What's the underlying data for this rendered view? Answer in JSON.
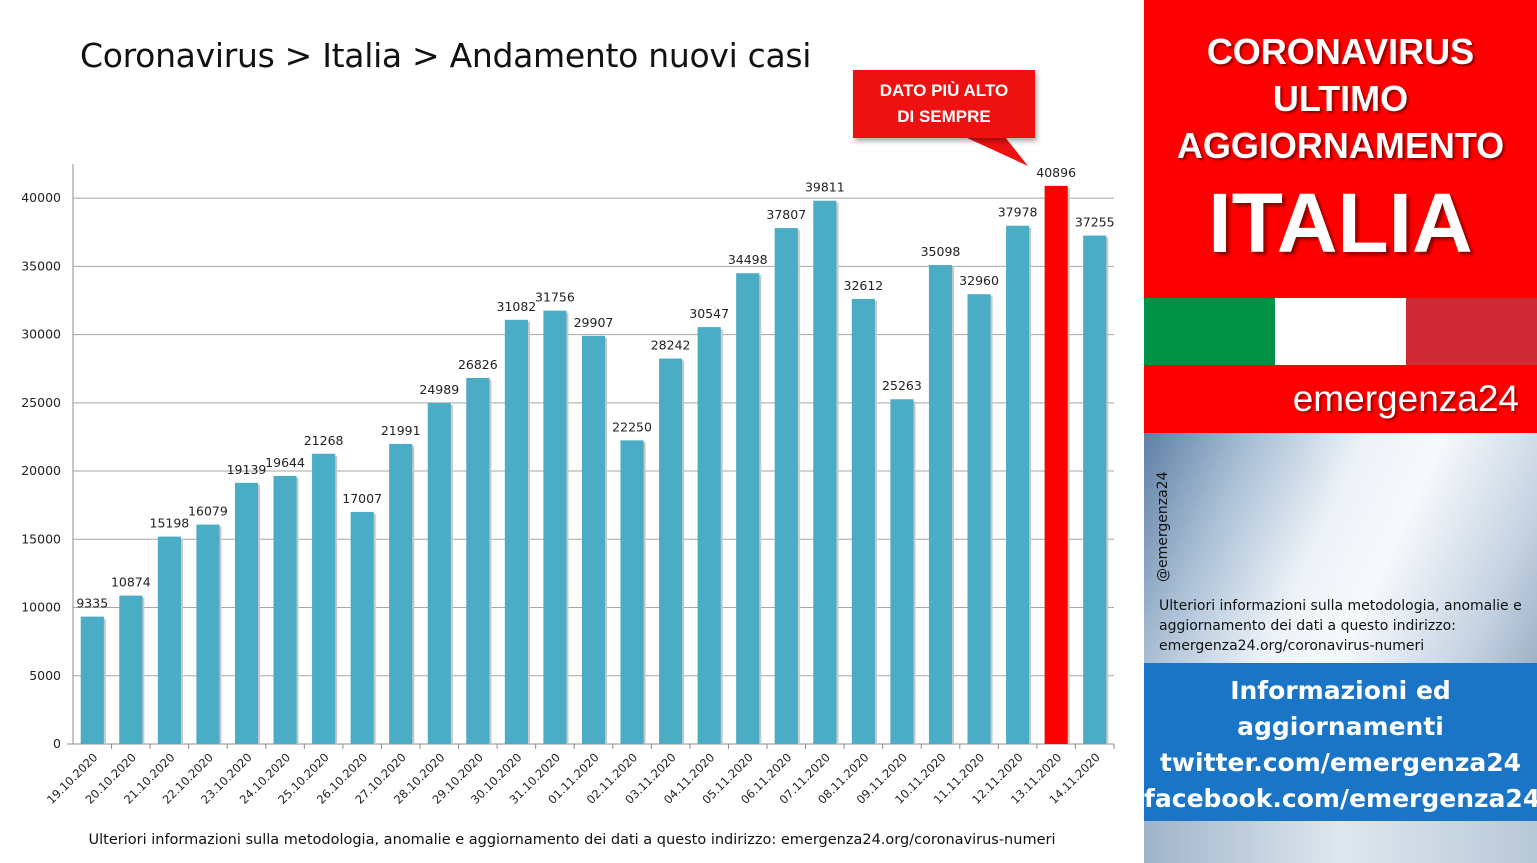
{
  "title": "Coronavirus > Italia > Andamento nuovi casi",
  "callout": {
    "line1": "DATO PIÙ ALTO",
    "line2": "DI SEMPRE"
  },
  "footnote": "Ulteriori informazioni sulla metodologia, anomalie e aggiornamento dei dati a questo indirizzo: emergenza24.org/coronavirus-numeri",
  "panel": {
    "header_lines": [
      "CORONAVIRUS",
      "ULTIMO",
      "AGGIORNAMENTO"
    ],
    "country": "ITALIA",
    "flag_colors": [
      "#009246",
      "#ffffff",
      "#ce2b37"
    ],
    "brand": "emergenza24",
    "handle": "@emergenza24",
    "note": "Ulteriori informazioni sulla metodologia, anomalie e aggiornamento dei dati a questo indirizzo: emergenza24.org/coronavirus-numeri",
    "info_lines": [
      "Informazioni ed",
      "aggiornamenti",
      "twitter.com/emergenza24",
      "facebook.com/emergenza24"
    ]
  },
  "colors": {
    "bar": "#4bacc6",
    "highlight": "#ff0000",
    "panel_red": "#ff0000",
    "panel_blue": "#1a75c6"
  },
  "chart_data": {
    "type": "bar",
    "title": "Coronavirus > Italia > Andamento nuovi casi",
    "categories": [
      "19.10.2020",
      "20.10.2020",
      "21.10.2020",
      "22.10.2020",
      "23.10.2020",
      "24.10.2020",
      "25.10.2020",
      "26.10.2020",
      "27.10.2020",
      "28.10.2020",
      "29.10.2020",
      "30.10.2020",
      "31.10.2020",
      "01.11.2020",
      "02.11.2020",
      "03.11.2020",
      "04.11.2020",
      "05.11.2020",
      "06.11.2020",
      "07.11.2020",
      "08.11.2020",
      "09.11.2020",
      "10.11.2020",
      "11.11.2020",
      "12.11.2020",
      "13.11.2020",
      "14.11.2020"
    ],
    "values": [
      9335,
      10874,
      15198,
      16079,
      19139,
      19644,
      21268,
      17007,
      21991,
      24989,
      26826,
      31082,
      31756,
      29907,
      22250,
      28242,
      30547,
      34498,
      37807,
      39811,
      32612,
      25263,
      35098,
      32960,
      37978,
      40896,
      37255
    ],
    "highlight_index": 25,
    "yticks": [
      0,
      5000,
      10000,
      15000,
      20000,
      25000,
      30000,
      35000,
      40000
    ],
    "ylim": [
      0,
      42500
    ],
    "grid": true,
    "legend": false,
    "annotation": "DATO PIÙ ALTO DI SEMPRE"
  }
}
